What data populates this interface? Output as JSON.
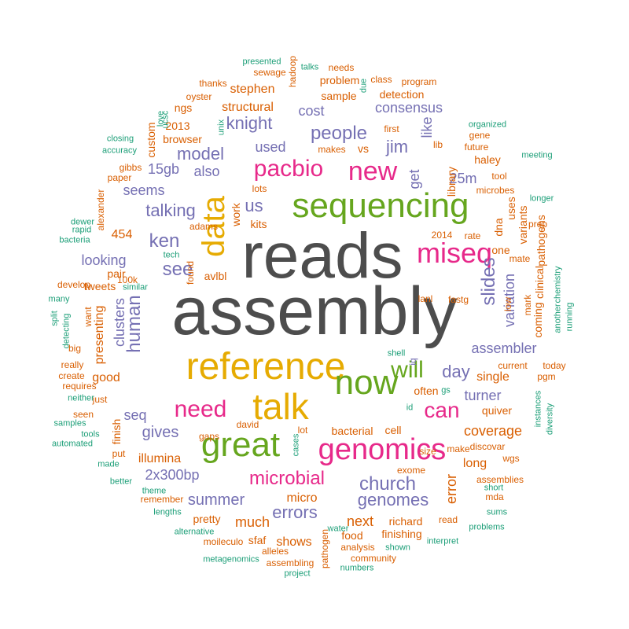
{
  "colors": {
    "gray": "#4d4d4d",
    "orange": "#d95f02",
    "green": "#1b9e77",
    "purple": "#7570b3",
    "magenta": "#e7298a",
    "olive": "#66a61e",
    "gold": "#e6ab02"
  },
  "words": [
    {
      "text": "reads",
      "color": "gray"
    },
    {
      "text": "assembly",
      "color": "gray"
    },
    {
      "text": "reference",
      "color": "gold"
    },
    {
      "text": "sequencing",
      "color": "olive"
    },
    {
      "text": "talk",
      "color": "gold"
    },
    {
      "text": "now",
      "color": "olive"
    },
    {
      "text": "great",
      "color": "olive"
    },
    {
      "text": "genomics",
      "color": "magenta"
    },
    {
      "text": "data",
      "color": "gold"
    },
    {
      "text": "miseq",
      "color": "magenta"
    },
    {
      "text": "new",
      "color": "magenta"
    },
    {
      "text": "pacbio",
      "color": "magenta"
    },
    {
      "text": "will",
      "color": "olive"
    },
    {
      "text": "can",
      "color": "magenta"
    },
    {
      "text": "need",
      "color": "magenta"
    },
    {
      "text": "microbial",
      "color": "magenta"
    },
    {
      "text": "people",
      "color": "purple"
    },
    {
      "text": "church",
      "color": "purple"
    },
    {
      "text": "slides",
      "color": "purple"
    },
    {
      "text": "ken",
      "color": "purple"
    },
    {
      "text": "see",
      "color": "purple"
    },
    {
      "text": "human",
      "color": "purple"
    },
    {
      "text": "genomes",
      "color": "purple"
    },
    {
      "text": "errors",
      "color": "purple"
    },
    {
      "text": "model",
      "color": "purple"
    },
    {
      "text": "knight",
      "color": "purple"
    },
    {
      "text": "jim",
      "color": "purple"
    },
    {
      "text": "talking",
      "color": "purple"
    },
    {
      "text": "us",
      "color": "purple"
    },
    {
      "text": "day",
      "color": "purple"
    },
    {
      "text": "summer",
      "color": "purple"
    },
    {
      "text": "gives",
      "color": "purple"
    },
    {
      "text": "consensus",
      "color": "purple"
    },
    {
      "text": "assembler",
      "color": "purple"
    },
    {
      "text": "coverage",
      "color": "orange"
    },
    {
      "text": "2x300bp",
      "color": "purple"
    },
    {
      "text": "seq",
      "color": "purple"
    },
    {
      "text": "also",
      "color": "purple"
    },
    {
      "text": "15gb",
      "color": "purple"
    },
    {
      "text": "clusters",
      "color": "purple"
    },
    {
      "text": "seems",
      "color": "purple"
    },
    {
      "text": "looking",
      "color": "purple"
    },
    {
      "text": "used",
      "color": "purple"
    },
    {
      "text": "cost",
      "color": "purple"
    },
    {
      "text": "get",
      "color": "purple"
    },
    {
      "text": "like",
      "color": "purple"
    },
    {
      "text": "25m",
      "color": "purple"
    },
    {
      "text": "turner",
      "color": "purple"
    },
    {
      "text": "variation",
      "color": "purple"
    },
    {
      "text": "much",
      "color": "orange"
    },
    {
      "text": "next",
      "color": "orange"
    },
    {
      "text": "error",
      "color": "orange"
    },
    {
      "text": "illumina",
      "color": "orange"
    },
    {
      "text": "long",
      "color": "orange"
    },
    {
      "text": "good",
      "color": "orange"
    },
    {
      "text": "single",
      "color": "orange"
    },
    {
      "text": "presenting",
      "color": "orange"
    },
    {
      "text": "454",
      "color": "orange"
    },
    {
      "text": "structural",
      "color": "orange"
    },
    {
      "text": "stephen",
      "color": "orange"
    },
    {
      "text": "shows",
      "color": "orange"
    },
    {
      "text": "micro",
      "color": "orange"
    },
    {
      "text": "richard",
      "color": "orange"
    },
    {
      "text": "finishing",
      "color": "orange"
    },
    {
      "text": "often",
      "color": "orange"
    },
    {
      "text": "quiver",
      "color": "orange"
    },
    {
      "text": "bacterial",
      "color": "orange"
    },
    {
      "text": "cell",
      "color": "orange"
    },
    {
      "text": "finish",
      "color": "orange"
    },
    {
      "text": "problem",
      "color": "orange"
    },
    {
      "text": "sample",
      "color": "orange"
    },
    {
      "text": "detection",
      "color": "orange"
    },
    {
      "text": "library",
      "color": "orange"
    },
    {
      "text": "dna",
      "color": "orange"
    },
    {
      "text": "coming",
      "color": "orange"
    },
    {
      "text": "clinical",
      "color": "orange"
    },
    {
      "text": "pathogens",
      "color": "orange"
    },
    {
      "text": "tweets",
      "color": "orange"
    },
    {
      "text": "pair",
      "color": "orange"
    },
    {
      "text": "browser",
      "color": "orange"
    },
    {
      "text": "ngs",
      "color": "orange"
    },
    {
      "text": "2013",
      "color": "orange"
    },
    {
      "text": "custom",
      "color": "orange"
    },
    {
      "text": "gibbs",
      "color": "orange"
    },
    {
      "text": "vs",
      "color": "orange"
    },
    {
      "text": "work",
      "color": "orange"
    },
    {
      "text": "kits",
      "color": "orange"
    },
    {
      "text": "adams",
      "color": "orange"
    },
    {
      "text": "avlbl",
      "color": "orange"
    },
    {
      "text": "lanl",
      "color": "orange"
    },
    {
      "text": "fastg",
      "color": "orange"
    },
    {
      "text": "one",
      "color": "orange"
    },
    {
      "text": "uses",
      "color": "orange"
    },
    {
      "text": "variants",
      "color": "orange"
    },
    {
      "text": "mark",
      "color": "orange"
    },
    {
      "text": "haley",
      "color": "orange"
    },
    {
      "text": "future",
      "color": "orange"
    },
    {
      "text": "tool",
      "color": "orange"
    },
    {
      "text": "remember",
      "color": "orange"
    },
    {
      "text": "pretty",
      "color": "orange"
    },
    {
      "text": "sfaf",
      "color": "orange"
    },
    {
      "text": "food",
      "color": "orange"
    },
    {
      "text": "community",
      "color": "orange"
    },
    {
      "text": "analysis",
      "color": "orange"
    },
    {
      "text": "alleles",
      "color": "orange"
    },
    {
      "text": "assembling",
      "color": "orange"
    },
    {
      "text": "pathogen",
      "color": "orange"
    },
    {
      "text": "moileculo",
      "color": "orange"
    },
    {
      "text": "assemblies",
      "color": "orange"
    },
    {
      "text": "exome",
      "color": "orange"
    },
    {
      "text": "discovar",
      "color": "orange"
    },
    {
      "text": "make",
      "color": "orange"
    },
    {
      "text": "wgs",
      "color": "orange"
    },
    {
      "text": "mda",
      "color": "orange"
    },
    {
      "text": "read",
      "color": "orange"
    },
    {
      "text": "david",
      "color": "orange"
    },
    {
      "text": "lot",
      "color": "orange"
    },
    {
      "text": "just",
      "color": "orange"
    },
    {
      "text": "seen",
      "color": "orange"
    },
    {
      "text": "really",
      "color": "orange"
    },
    {
      "text": "requires",
      "color": "orange"
    },
    {
      "text": "create",
      "color": "orange"
    },
    {
      "text": "gaps",
      "color": "orange"
    },
    {
      "text": "size",
      "color": "orange"
    },
    {
      "text": "develop",
      "color": "orange"
    },
    {
      "text": "want",
      "color": "orange"
    },
    {
      "text": "big",
      "color": "orange"
    },
    {
      "text": "100k",
      "color": "orange"
    },
    {
      "text": "found",
      "color": "orange"
    },
    {
      "text": "alexander",
      "color": "orange"
    },
    {
      "text": "paper",
      "color": "orange"
    },
    {
      "text": "lots",
      "color": "orange"
    },
    {
      "text": "thanks",
      "color": "orange"
    },
    {
      "text": "oyster",
      "color": "orange"
    },
    {
      "text": "sewage",
      "color": "orange"
    },
    {
      "text": "needs",
      "color": "orange"
    },
    {
      "text": "class",
      "color": "orange"
    },
    {
      "text": "program",
      "color": "orange"
    },
    {
      "text": "hadoop",
      "color": "orange"
    },
    {
      "text": "first",
      "color": "orange"
    },
    {
      "text": "makes",
      "color": "orange"
    },
    {
      "text": "gene",
      "color": "orange"
    },
    {
      "text": "lib",
      "color": "orange"
    },
    {
      "text": "microbes",
      "color": "orange"
    },
    {
      "text": "prep",
      "color": "orange"
    },
    {
      "text": "2014",
      "color": "orange"
    },
    {
      "text": "rate",
      "color": "orange"
    },
    {
      "text": "mate",
      "color": "orange"
    },
    {
      "text": "low",
      "color": "orange"
    },
    {
      "text": "current",
      "color": "orange"
    },
    {
      "text": "today",
      "color": "orange"
    },
    {
      "text": "pgm",
      "color": "orange"
    },
    {
      "text": "put",
      "color": "orange"
    },
    {
      "text": "remember2",
      "color": "orange"
    },
    {
      "text": "ucsc",
      "color": "green"
    },
    {
      "text": "love",
      "color": "green"
    },
    {
      "text": "unix",
      "color": "green"
    },
    {
      "text": "presented",
      "color": "green"
    },
    {
      "text": "talks",
      "color": "green"
    },
    {
      "text": "due",
      "color": "green"
    },
    {
      "text": "organized",
      "color": "green"
    },
    {
      "text": "closing",
      "color": "green"
    },
    {
      "text": "accuracy",
      "color": "green"
    },
    {
      "text": "meeting",
      "color": "green"
    },
    {
      "text": "longer",
      "color": "green"
    },
    {
      "text": "dewer",
      "color": "green"
    },
    {
      "text": "rapid",
      "color": "green"
    },
    {
      "text": "bacteria",
      "color": "green"
    },
    {
      "text": "tech",
      "color": "green"
    },
    {
      "text": "similar",
      "color": "green"
    },
    {
      "text": "many",
      "color": "green"
    },
    {
      "text": "split",
      "color": "green"
    },
    {
      "text": "detecting",
      "color": "green"
    },
    {
      "text": "chemistry",
      "color": "green"
    },
    {
      "text": "another",
      "color": "green"
    },
    {
      "text": "running",
      "color": "green"
    },
    {
      "text": "shell",
      "color": "green"
    },
    {
      "text": "iq",
      "color": "purple"
    },
    {
      "text": "gs",
      "color": "green"
    },
    {
      "text": "id",
      "color": "green"
    },
    {
      "text": "neither",
      "color": "green"
    },
    {
      "text": "samples",
      "color": "green"
    },
    {
      "text": "tools",
      "color": "green"
    },
    {
      "text": "automated",
      "color": "green"
    },
    {
      "text": "made",
      "color": "green"
    },
    {
      "text": "better",
      "color": "green"
    },
    {
      "text": "theme",
      "color": "green"
    },
    {
      "text": "lengths",
      "color": "green"
    },
    {
      "text": "alternative",
      "color": "green"
    },
    {
      "text": "metagenomics",
      "color": "green"
    },
    {
      "text": "project",
      "color": "green"
    },
    {
      "text": "water",
      "color": "green"
    },
    {
      "text": "numbers",
      "color": "green"
    },
    {
      "text": "shown",
      "color": "green"
    },
    {
      "text": "interpret",
      "color": "green"
    },
    {
      "text": "problems",
      "color": "green"
    },
    {
      "text": "sums",
      "color": "green"
    },
    {
      "text": "short",
      "color": "green"
    },
    {
      "text": "diversity",
      "color": "green"
    },
    {
      "text": "instances",
      "color": "green"
    },
    {
      "text": "cases",
      "color": "green"
    }
  ]
}
